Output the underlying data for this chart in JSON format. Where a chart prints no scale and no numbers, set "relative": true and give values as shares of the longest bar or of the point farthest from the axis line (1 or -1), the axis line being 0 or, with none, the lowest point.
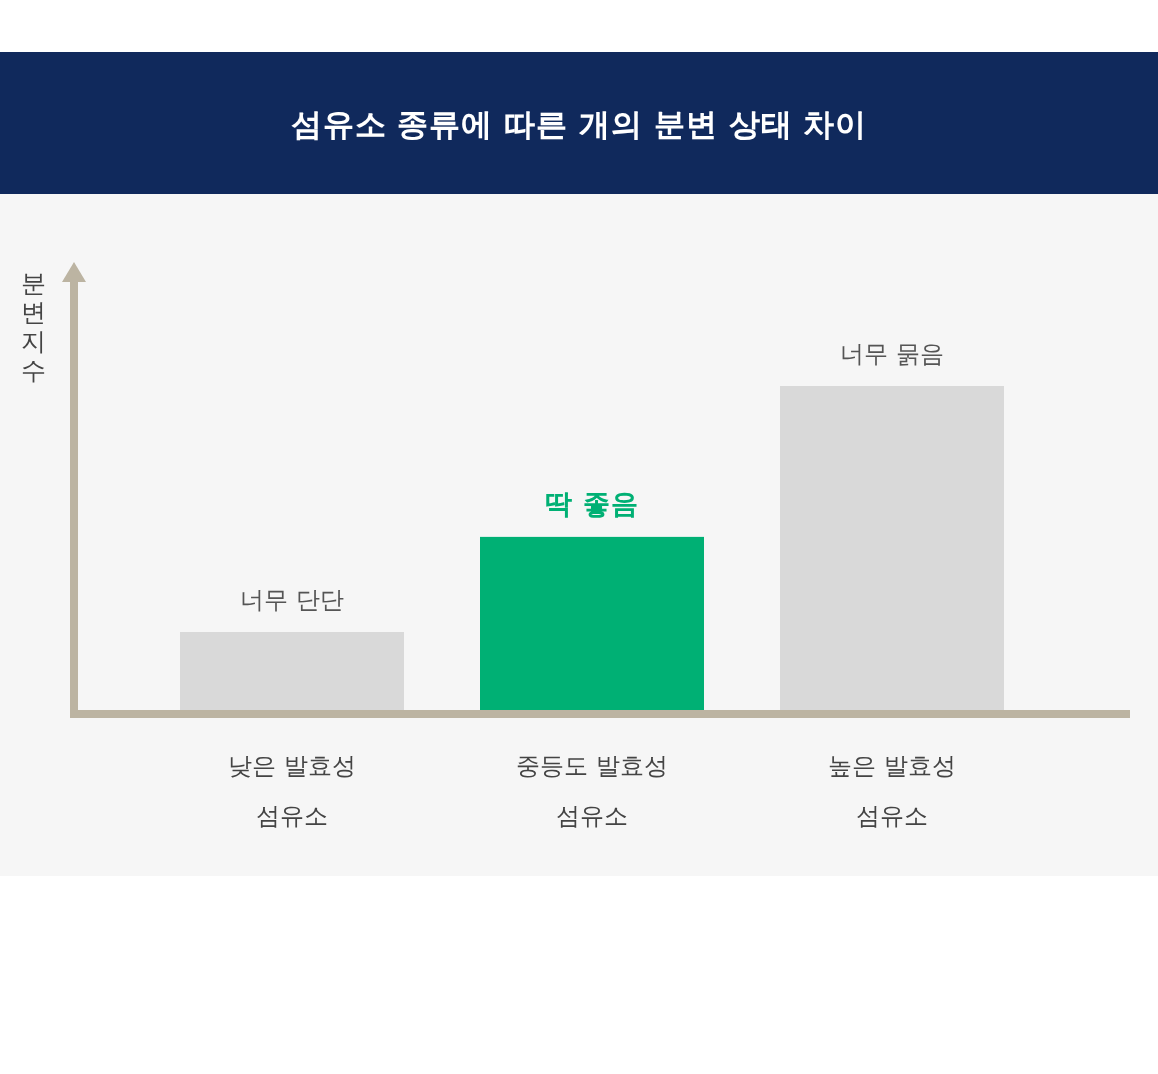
{
  "chart_data": {
    "type": "bar",
    "title": "섬유소 종류에 따른 개의 분변 상태 차이",
    "ylabel": "분변지수",
    "categories": [
      "낮은 발효성 섬유소",
      "중등도 발효성 섬유소",
      "높은 발효성 섬유소"
    ],
    "values": [
      0.25,
      0.54,
      1
    ],
    "colors": [
      "#d9d9d9",
      "#00b074",
      "#d9d9d9"
    ],
    "relative": true,
    "annotations": [
      {
        "text": "너무 단단",
        "x": "낮은 발효성 섬유소",
        "y": 0.25
      },
      {
        "text": "딱 좋음",
        "x": "중등도 발효성 섬유소",
        "y": 0.54
      },
      {
        "text": "너무 묽음",
        "x": "높은 발효성 섬유소",
        "y": 1
      }
    ]
  }
}
